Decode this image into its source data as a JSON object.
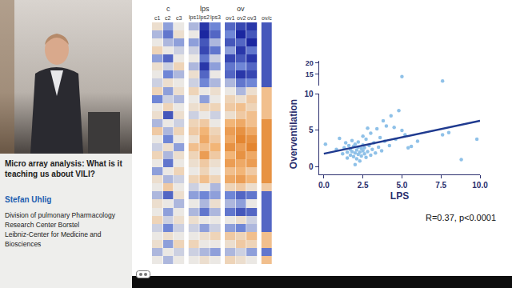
{
  "slide": {
    "title_lines": [
      "Micro array analysis: What is it",
      "teaching us about VILI?"
    ],
    "speaker": "Stefan Uhlig",
    "affiliation_lines": [
      "Division of pulmonary Pharmacology",
      "Research Center Borstel",
      "Leibniz-Center for Medicine and",
      "Biosciences"
    ]
  },
  "chart_data": [
    {
      "type": "heatmap",
      "tick_labels": false,
      "zlim": [
        -1,
        1
      ],
      "groups": [
        {
          "title": "c",
          "columns": [
            "c1",
            "c2",
            "c3"
          ],
          "cells": [
            [
              0.1,
              -0.3,
              0.0
            ],
            [
              -0.2,
              -0.5,
              0.1
            ],
            [
              0.0,
              -0.2,
              -0.3
            ],
            [
              0.2,
              0.0,
              -0.1
            ],
            [
              -0.3,
              -0.6,
              0.0
            ],
            [
              0.1,
              -0.1,
              0.2
            ],
            [
              0.0,
              -0.4,
              -0.2
            ],
            [
              -0.1,
              0.1,
              0.0
            ],
            [
              0.2,
              -0.3,
              0.1
            ],
            [
              -0.4,
              -0.1,
              -0.2
            ],
            [
              0.0,
              0.2,
              0.0
            ],
            [
              0.1,
              -0.7,
              0.1
            ],
            [
              -0.2,
              0.0,
              -0.1
            ],
            [
              0.3,
              -0.2,
              0.2
            ],
            [
              0.0,
              -0.4,
              0.0
            ],
            [
              -0.1,
              0.1,
              -0.3
            ],
            [
              0.2,
              -0.2,
              0.1
            ],
            [
              0.0,
              -0.5,
              0.0
            ],
            [
              -0.3,
              0.0,
              0.2
            ],
            [
              0.1,
              -0.2,
              -0.1
            ],
            [
              0.0,
              0.3,
              0.0
            ],
            [
              -0.2,
              -0.6,
              0.1
            ],
            [
              0.1,
              0.0,
              -0.2
            ],
            [
              0.0,
              -0.3,
              0.0
            ],
            [
              0.2,
              -0.1,
              0.1
            ],
            [
              -0.1,
              -0.4,
              -0.1
            ],
            [
              0.0,
              0.1,
              0.0
            ],
            [
              0.1,
              -0.3,
              0.2
            ],
            [
              -0.2,
              0.0,
              -0.1
            ],
            [
              0.0,
              -0.2,
              0.0
            ]
          ]
        },
        {
          "title": "lps",
          "columns": [
            "lps1",
            "lps2",
            "lps3"
          ],
          "cells": [
            [
              -0.2,
              -0.9,
              -0.4
            ],
            [
              0.0,
              -1.0,
              -0.6
            ],
            [
              -0.3,
              -0.7,
              -0.2
            ],
            [
              -0.1,
              -0.8,
              -0.5
            ],
            [
              0.0,
              -0.5,
              -0.1
            ],
            [
              -0.2,
              -0.9,
              -0.3
            ],
            [
              0.1,
              -0.6,
              0.0
            ],
            [
              -0.1,
              -0.4,
              -0.2
            ],
            [
              0.2,
              0.0,
              0.1
            ],
            [
              0.0,
              -0.3,
              0.0
            ],
            [
              0.1,
              0.2,
              0.2
            ],
            [
              -0.1,
              0.0,
              -0.1
            ],
            [
              0.2,
              0.3,
              0.0
            ],
            [
              0.3,
              0.5,
              0.2
            ],
            [
              0.1,
              0.6,
              0.3
            ],
            [
              0.4,
              0.4,
              0.5
            ],
            [
              0.2,
              0.7,
              0.3
            ],
            [
              0.1,
              0.3,
              0.1
            ],
            [
              0.0,
              0.2,
              0.0
            ],
            [
              0.2,
              0.4,
              0.2
            ],
            [
              -0.1,
              0.0,
              -0.2
            ],
            [
              -0.3,
              -0.4,
              -0.3
            ],
            [
              0.0,
              -0.2,
              0.1
            ],
            [
              -0.2,
              -0.5,
              -0.2
            ],
            [
              0.1,
              0.0,
              0.0
            ],
            [
              -0.1,
              -0.3,
              -0.1
            ],
            [
              0.0,
              0.1,
              0.2
            ],
            [
              0.2,
              0.0,
              0.0
            ],
            [
              -0.1,
              -0.2,
              -0.3
            ],
            [
              0.0,
              0.1,
              0.0
            ]
          ]
        },
        {
          "title": "ov",
          "columns": [
            "ov1",
            "ov2",
            "ov3"
          ],
          "cells": [
            [
              -0.6,
              -0.8,
              -0.9
            ],
            [
              -0.4,
              -1.0,
              -0.7
            ],
            [
              -0.7,
              -0.6,
              -1.0
            ],
            [
              -0.3,
              -0.9,
              -0.5
            ],
            [
              -0.8,
              -0.7,
              -0.9
            ],
            [
              -0.5,
              -0.4,
              -0.6
            ],
            [
              -0.6,
              -0.9,
              -0.8
            ],
            [
              -0.2,
              -0.5,
              -0.4
            ],
            [
              0.0,
              -0.2,
              0.1
            ],
            [
              0.2,
              0.1,
              0.3
            ],
            [
              0.3,
              0.4,
              0.2
            ],
            [
              0.1,
              0.3,
              0.4
            ],
            [
              0.5,
              0.6,
              0.4
            ],
            [
              0.7,
              0.8,
              0.6
            ],
            [
              0.6,
              0.9,
              0.8
            ],
            [
              0.8,
              0.7,
              0.9
            ],
            [
              0.5,
              0.8,
              0.6
            ],
            [
              0.7,
              0.6,
              0.7
            ],
            [
              0.4,
              0.5,
              0.3
            ],
            [
              0.6,
              0.7,
              0.5
            ],
            [
              0.2,
              0.3,
              0.1
            ],
            [
              -0.4,
              -0.6,
              -0.5
            ],
            [
              -0.2,
              -0.3,
              0.0
            ],
            [
              -0.5,
              -0.7,
              -0.6
            ],
            [
              0.0,
              0.1,
              -0.1
            ],
            [
              -0.3,
              -0.4,
              -0.2
            ],
            [
              0.3,
              0.2,
              0.4
            ],
            [
              0.1,
              0.3,
              0.2
            ],
            [
              -0.2,
              -0.1,
              -0.3
            ],
            [
              0.2,
              0.1,
              0.0
            ]
          ]
        },
        {
          "columns": [
            "ov/c"
          ],
          "cells": [
            [
              -0.7
            ],
            [
              -0.7
            ],
            [
              -0.7
            ],
            [
              -0.7
            ],
            [
              -0.7
            ],
            [
              -0.7
            ],
            [
              -0.7
            ],
            [
              -0.7
            ],
            [
              0.4
            ],
            [
              0.4
            ],
            [
              0.4
            ],
            [
              0.4
            ],
            [
              0.8
            ],
            [
              0.8
            ],
            [
              0.8
            ],
            [
              0.8
            ],
            [
              0.8
            ],
            [
              0.8
            ],
            [
              0.8
            ],
            [
              0.8
            ],
            [
              0.3
            ],
            [
              -0.6
            ],
            [
              -0.6
            ],
            [
              -0.6
            ],
            [
              -0.6
            ],
            [
              -0.6
            ],
            [
              0.4
            ],
            [
              0.4
            ],
            [
              -0.5
            ],
            [
              0.4
            ]
          ]
        }
      ]
    },
    {
      "type": "scatter",
      "x_label": "LPS",
      "y_label": "Overventilation",
      "annotation": "R=0.37, p<0.0001",
      "xlim": [
        -0.3,
        10
      ],
      "xticks": [
        {
          "value": 0,
          "label": "0.0"
        },
        {
          "value": 2.5,
          "label": "2.5"
        },
        {
          "value": 5,
          "label": "5.0"
        },
        {
          "value": 7.5,
          "label": "7.5"
        },
        {
          "value": 10,
          "label": "10.0"
        }
      ],
      "ylim": [
        -1,
        10
      ],
      "yticks": [
        0,
        5,
        10
      ],
      "y2lim": [
        10,
        21
      ],
      "y2ticks": [
        15,
        20
      ],
      "series": [
        {
          "type": "scatter",
          "marker": "circle",
          "color": "#8fc1e8",
          "x": [
            0.1,
            0.8,
            1.0,
            1.2,
            1.3,
            1.4,
            1.5,
            1.5,
            1.6,
            1.7,
            1.7,
            1.8,
            1.8,
            1.9,
            1.9,
            2.0,
            2.0,
            2.0,
            2.1,
            2.1,
            2.2,
            2.2,
            2.2,
            2.3,
            2.3,
            2.4,
            2.4,
            2.5,
            2.5,
            2.5,
            2.6,
            2.6,
            2.7,
            2.7,
            2.8,
            2.8,
            2.9,
            3.0,
            3.0,
            3.1,
            3.2,
            3.3,
            3.4,
            3.5,
            3.6,
            3.7,
            3.8,
            3.9,
            4.0,
            4.2,
            4.3,
            4.5,
            4.6,
            4.8,
            5.0,
            5.2,
            5.4,
            5.6,
            6.0,
            7.6,
            8.0,
            8.8,
            9.8
          ],
          "values": [
            3.1,
            2.4,
            3.9,
            1.8,
            2.6,
            3.3,
            2.0,
            1.2,
            2.9,
            2.4,
            1.6,
            3.6,
            2.1,
            1.4,
            2.8,
            0.3,
            1.9,
            3.1,
            2.3,
            1.1,
            2.7,
            1.7,
            3.4,
            2.0,
            0.8,
            2.5,
            1.5,
            3.0,
            2.2,
            4.2,
            1.8,
            2.6,
            1.3,
            3.8,
            2.1,
            5.3,
            2.9,
            1.6,
            4.6,
            2.4,
            3.3,
            1.9,
            5.2,
            2.7,
            4.0,
            2.2,
            6.3,
            3.5,
            5.6,
            2.9,
            7.0,
            5.4,
            3.8,
            7.7,
            5.0,
            4.4,
            2.6,
            2.8,
            3.5,
            4.4,
            4.7,
            1.0,
            3.8
          ]
        },
        {
          "type": "scatter",
          "marker": "circle",
          "color": "#8fc1e8",
          "axis": "y2",
          "x": [
            5.0,
            7.6
          ],
          "values": [
            14,
            12
          ]
        },
        {
          "type": "line",
          "line_style": "solid",
          "color": "#1f3a8f",
          "x": [
            0,
            10
          ],
          "values": [
            1.8,
            6.3
          ]
        }
      ]
    }
  ]
}
